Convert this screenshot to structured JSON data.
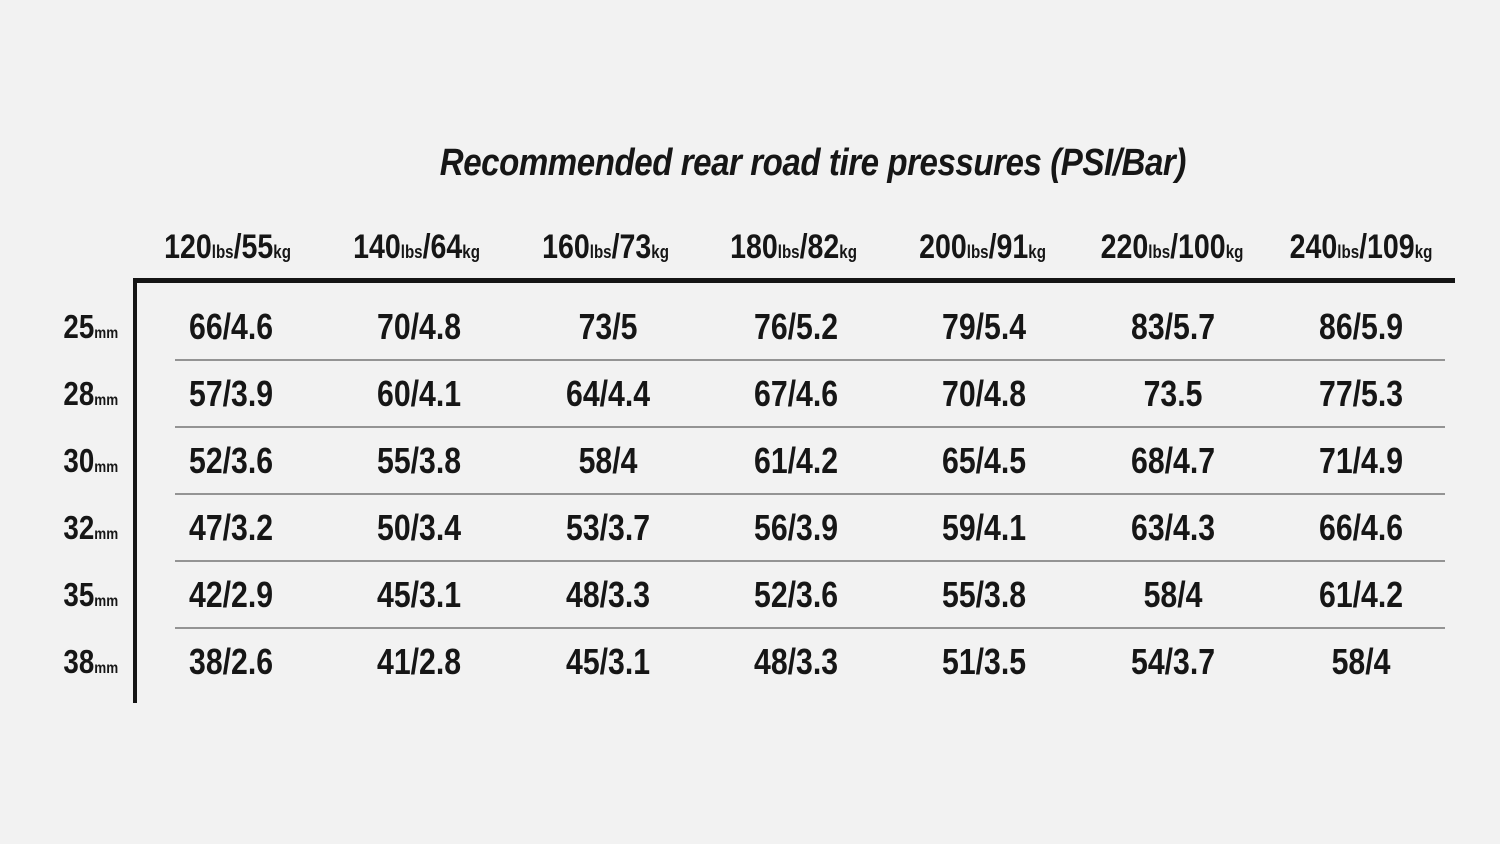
{
  "page": {
    "background_color": "#f2f2f2",
    "text_color": "#161616",
    "rule_strong_color": "#151515",
    "rule_light_color": "#949494"
  },
  "chart_data": {
    "type": "table",
    "title": "Recommended rear road tire pressures (PSI/Bar)",
    "units": "PSI/Bar",
    "column_axis": "rider weight (lbs/kg)",
    "row_axis": "tire width (mm)",
    "columns": [
      "120lbs/55kg",
      "140lbs/64kg",
      "160lbs/73kg",
      "180lbs/82kg",
      "200lbs/91kg",
      "220lbs/100kg",
      "240lbs/109kg"
    ],
    "row_labels": [
      "25mm",
      "28mm",
      "30mm",
      "32mm",
      "35mm",
      "38mm"
    ],
    "rows": [
      {
        "label": "25mm",
        "values": [
          "66/4.6",
          "70/4.8",
          "73/5",
          "76/5.2",
          "79/5.4",
          "83/5.7",
          "86/5.9"
        ]
      },
      {
        "label": "28mm",
        "values": [
          "57/3.9",
          "60/4.1",
          "64/4.4",
          "67/4.6",
          "70/4.8",
          "73.5",
          "77/5.3"
        ]
      },
      {
        "label": "30mm",
        "values": [
          "52/3.6",
          "55/3.8",
          "58/4",
          "61/4.2",
          "65/4.5",
          "68/4.7",
          "71/4.9"
        ]
      },
      {
        "label": "32mm",
        "values": [
          "47/3.2",
          "50/3.4",
          "53/3.7",
          "56/3.9",
          "59/4.1",
          "63/4.3",
          "66/4.6"
        ]
      },
      {
        "label": "35mm",
        "values": [
          "42/2.9",
          "45/3.1",
          "48/3.3",
          "52/3.6",
          "55/3.8",
          "58/4",
          "61/4.2"
        ]
      },
      {
        "label": "38mm",
        "values": [
          "38/2.6",
          "41/2.8",
          "45/3.1",
          "48/3.3",
          "51/3.5",
          "54/3.7",
          "58/4"
        ]
      }
    ]
  }
}
